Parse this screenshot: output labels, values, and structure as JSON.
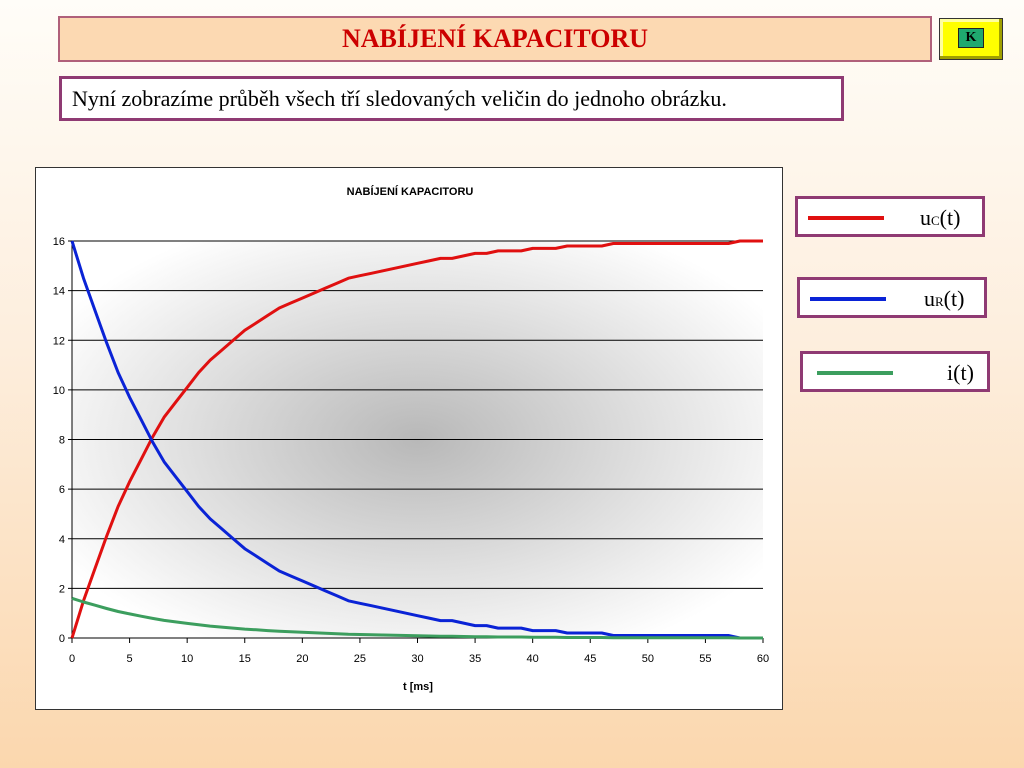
{
  "header": {
    "title": "NABÍJENÍ KAPACITORU",
    "k_button": "K"
  },
  "intro_text": "Nyní zobrazíme průběh všech tří sledovaných veličin do jednoho obrázku.",
  "legend": [
    {
      "base": "u",
      "sub": "C",
      "suffix": "(t)",
      "color": "#e01010"
    },
    {
      "base": "u",
      "sub": "R",
      "suffix": "(t)",
      "color": "#0a23d6"
    },
    {
      "base": "i",
      "sub": "",
      "suffix": "(t)",
      "color": "#3c9e5e"
    }
  ],
  "chart_data": {
    "type": "line",
    "title": "NABÍJENÍ KAPACITORU",
    "xlabel": "t [ms]",
    "ylabel": "",
    "xlim": [
      0,
      60
    ],
    "ylim": [
      0,
      16
    ],
    "xticks": [
      0,
      5,
      10,
      15,
      20,
      25,
      30,
      35,
      40,
      45,
      50,
      55,
      60
    ],
    "yticks": [
      0,
      2,
      4,
      6,
      8,
      10,
      12,
      14,
      16
    ],
    "grid": "horizontal",
    "x": [
      0,
      1,
      2,
      3,
      4,
      5,
      6,
      7,
      8,
      9,
      10,
      11,
      12,
      13,
      14,
      15,
      16,
      17,
      18,
      19,
      20,
      21,
      22,
      23,
      24,
      25,
      26,
      27,
      28,
      29,
      30,
      31,
      32,
      33,
      34,
      35,
      36,
      37,
      38,
      39,
      40,
      41,
      42,
      43,
      44,
      45,
      46,
      47,
      48,
      49,
      50,
      51,
      52,
      53,
      54,
      55,
      56,
      57,
      58,
      59,
      60
    ],
    "series": [
      {
        "color": "#e01010",
        "values": [
          0.0,
          1.5,
          2.8,
          4.1,
          5.3,
          6.3,
          7.2,
          8.1,
          8.9,
          9.5,
          10.1,
          10.7,
          11.2,
          11.6,
          12.0,
          12.4,
          12.7,
          13.0,
          13.3,
          13.5,
          13.7,
          13.9,
          14.1,
          14.3,
          14.5,
          14.6,
          14.7,
          14.8,
          14.9,
          15.0,
          15.1,
          15.2,
          15.3,
          15.3,
          15.4,
          15.5,
          15.5,
          15.6,
          15.6,
          15.6,
          15.7,
          15.7,
          15.7,
          15.8,
          15.8,
          15.8,
          15.8,
          15.9,
          15.9,
          15.9,
          15.9,
          15.9,
          15.9,
          15.9,
          15.9,
          15.9,
          15.9,
          15.9,
          16.0,
          16.0,
          16.0
        ]
      },
      {
        "color": "#0a23d6",
        "values": [
          16.0,
          14.5,
          13.2,
          11.9,
          10.7,
          9.7,
          8.8,
          7.9,
          7.1,
          6.5,
          5.9,
          5.3,
          4.8,
          4.4,
          4.0,
          3.6,
          3.3,
          3.0,
          2.7,
          2.5,
          2.3,
          2.1,
          1.9,
          1.7,
          1.5,
          1.4,
          1.3,
          1.2,
          1.1,
          1.0,
          0.9,
          0.8,
          0.7,
          0.7,
          0.6,
          0.5,
          0.5,
          0.4,
          0.4,
          0.4,
          0.3,
          0.3,
          0.3,
          0.2,
          0.2,
          0.2,
          0.2,
          0.1,
          0.1,
          0.1,
          0.1,
          0.1,
          0.1,
          0.1,
          0.1,
          0.1,
          0.1,
          0.1,
          0.0,
          0.0,
          0.0
        ]
      },
      {
        "color": "#3c9e5e",
        "values": [
          1.6,
          1.45,
          1.32,
          1.19,
          1.07,
          0.97,
          0.88,
          0.79,
          0.71,
          0.65,
          0.59,
          0.53,
          0.48,
          0.44,
          0.4,
          0.36,
          0.33,
          0.3,
          0.27,
          0.25,
          0.23,
          0.21,
          0.19,
          0.17,
          0.15,
          0.14,
          0.13,
          0.12,
          0.11,
          0.1,
          0.09,
          0.08,
          0.07,
          0.07,
          0.06,
          0.05,
          0.05,
          0.04,
          0.04,
          0.04,
          0.03,
          0.03,
          0.03,
          0.02,
          0.02,
          0.02,
          0.02,
          0.01,
          0.01,
          0.01,
          0.01,
          0.01,
          0.01,
          0.01,
          0.01,
          0.01,
          0.01,
          0.01,
          0.0,
          0.0,
          0.0
        ]
      }
    ]
  }
}
